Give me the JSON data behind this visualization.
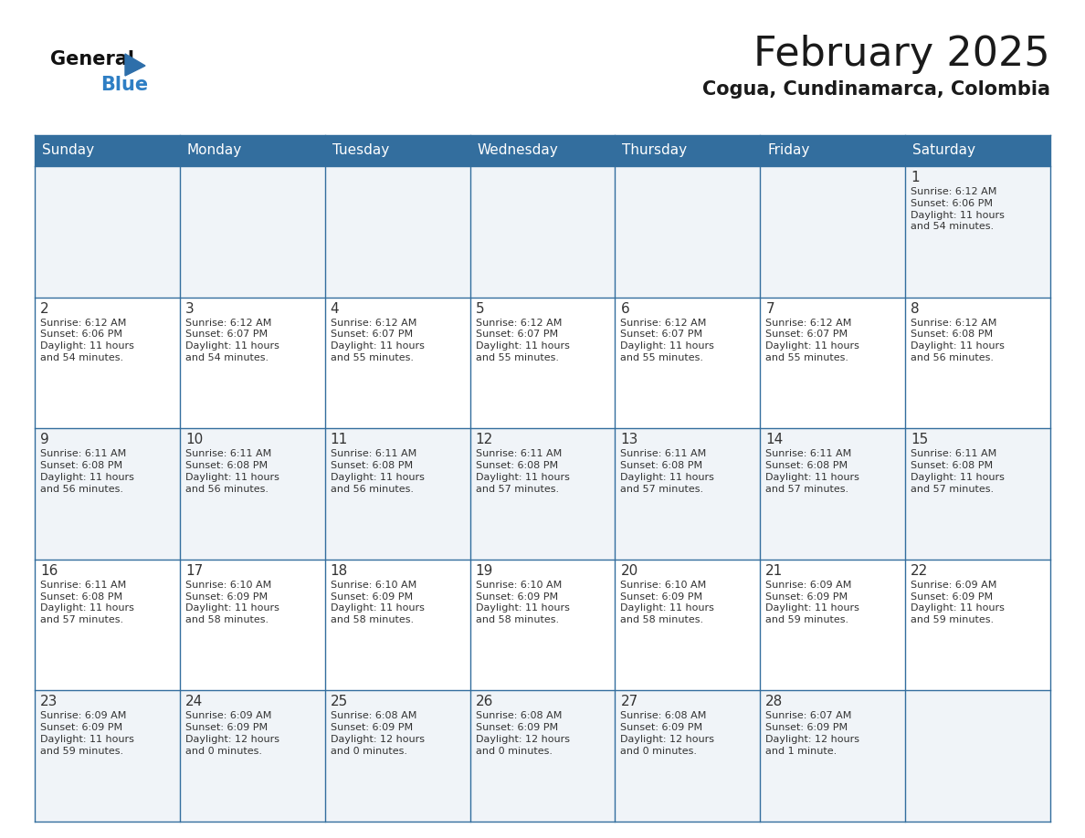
{
  "title": "February 2025",
  "subtitle": "Cogua, Cundinamarca, Colombia",
  "header_bg": "#336e9e",
  "header_text": "#ffffff",
  "cell_bg_odd": "#f0f4f8",
  "cell_bg_even": "#ffffff",
  "border_color": "#336e9e",
  "day_headers": [
    "Sunday",
    "Monday",
    "Tuesday",
    "Wednesday",
    "Thursday",
    "Friday",
    "Saturday"
  ],
  "calendar_data": [
    [
      null,
      null,
      null,
      null,
      null,
      null,
      {
        "day": "1",
        "sunrise": "6:12 AM",
        "sunset": "6:06 PM",
        "daylight": "11 hours\nand 54 minutes."
      }
    ],
    [
      {
        "day": "2",
        "sunrise": "6:12 AM",
        "sunset": "6:06 PM",
        "daylight": "11 hours\nand 54 minutes."
      },
      {
        "day": "3",
        "sunrise": "6:12 AM",
        "sunset": "6:07 PM",
        "daylight": "11 hours\nand 54 minutes."
      },
      {
        "day": "4",
        "sunrise": "6:12 AM",
        "sunset": "6:07 PM",
        "daylight": "11 hours\nand 55 minutes."
      },
      {
        "day": "5",
        "sunrise": "6:12 AM",
        "sunset": "6:07 PM",
        "daylight": "11 hours\nand 55 minutes."
      },
      {
        "day": "6",
        "sunrise": "6:12 AM",
        "sunset": "6:07 PM",
        "daylight": "11 hours\nand 55 minutes."
      },
      {
        "day": "7",
        "sunrise": "6:12 AM",
        "sunset": "6:07 PM",
        "daylight": "11 hours\nand 55 minutes."
      },
      {
        "day": "8",
        "sunrise": "6:12 AM",
        "sunset": "6:08 PM",
        "daylight": "11 hours\nand 56 minutes."
      }
    ],
    [
      {
        "day": "9",
        "sunrise": "6:11 AM",
        "sunset": "6:08 PM",
        "daylight": "11 hours\nand 56 minutes."
      },
      {
        "day": "10",
        "sunrise": "6:11 AM",
        "sunset": "6:08 PM",
        "daylight": "11 hours\nand 56 minutes."
      },
      {
        "day": "11",
        "sunrise": "6:11 AM",
        "sunset": "6:08 PM",
        "daylight": "11 hours\nand 56 minutes."
      },
      {
        "day": "12",
        "sunrise": "6:11 AM",
        "sunset": "6:08 PM",
        "daylight": "11 hours\nand 57 minutes."
      },
      {
        "day": "13",
        "sunrise": "6:11 AM",
        "sunset": "6:08 PM",
        "daylight": "11 hours\nand 57 minutes."
      },
      {
        "day": "14",
        "sunrise": "6:11 AM",
        "sunset": "6:08 PM",
        "daylight": "11 hours\nand 57 minutes."
      },
      {
        "day": "15",
        "sunrise": "6:11 AM",
        "sunset": "6:08 PM",
        "daylight": "11 hours\nand 57 minutes."
      }
    ],
    [
      {
        "day": "16",
        "sunrise": "6:11 AM",
        "sunset": "6:08 PM",
        "daylight": "11 hours\nand 57 minutes."
      },
      {
        "day": "17",
        "sunrise": "6:10 AM",
        "sunset": "6:09 PM",
        "daylight": "11 hours\nand 58 minutes."
      },
      {
        "day": "18",
        "sunrise": "6:10 AM",
        "sunset": "6:09 PM",
        "daylight": "11 hours\nand 58 minutes."
      },
      {
        "day": "19",
        "sunrise": "6:10 AM",
        "sunset": "6:09 PM",
        "daylight": "11 hours\nand 58 minutes."
      },
      {
        "day": "20",
        "sunrise": "6:10 AM",
        "sunset": "6:09 PM",
        "daylight": "11 hours\nand 58 minutes."
      },
      {
        "day": "21",
        "sunrise": "6:09 AM",
        "sunset": "6:09 PM",
        "daylight": "11 hours\nand 59 minutes."
      },
      {
        "day": "22",
        "sunrise": "6:09 AM",
        "sunset": "6:09 PM",
        "daylight": "11 hours\nand 59 minutes."
      }
    ],
    [
      {
        "day": "23",
        "sunrise": "6:09 AM",
        "sunset": "6:09 PM",
        "daylight": "11 hours\nand 59 minutes."
      },
      {
        "day": "24",
        "sunrise": "6:09 AM",
        "sunset": "6:09 PM",
        "daylight": "12 hours\nand 0 minutes."
      },
      {
        "day": "25",
        "sunrise": "6:08 AM",
        "sunset": "6:09 PM",
        "daylight": "12 hours\nand 0 minutes."
      },
      {
        "day": "26",
        "sunrise": "6:08 AM",
        "sunset": "6:09 PM",
        "daylight": "12 hours\nand 0 minutes."
      },
      {
        "day": "27",
        "sunrise": "6:08 AM",
        "sunset": "6:09 PM",
        "daylight": "12 hours\nand 0 minutes."
      },
      {
        "day": "28",
        "sunrise": "6:07 AM",
        "sunset": "6:09 PM",
        "daylight": "12 hours\nand 1 minute."
      },
      null
    ]
  ],
  "title_fontsize": 32,
  "subtitle_fontsize": 15,
  "header_fontsize": 11,
  "day_num_fontsize": 11,
  "cell_text_fontsize": 8,
  "text_color_dark": "#1a1a1a",
  "text_color_cell": "#333333",
  "logo_general_color": "#111111",
  "logo_blue_color": "#2e7ec4",
  "logo_triangle_color": "#2e6faa"
}
